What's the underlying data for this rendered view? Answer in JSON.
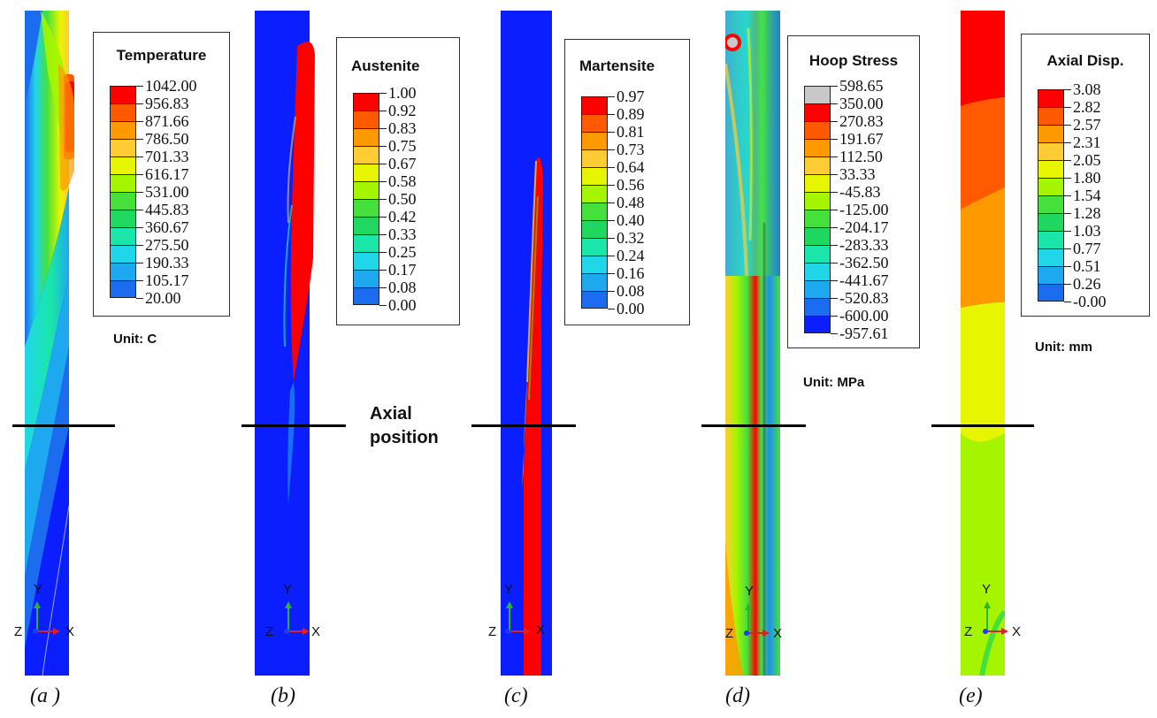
{
  "axial_position_label": [
    "Axial",
    "position"
  ],
  "colormaps": {
    "rainbow13": [
      "#ff0000",
      "#ff5a00",
      "#ff9900",
      "#ffcc33",
      "#e8f500",
      "#a6f500",
      "#45e03c",
      "#20d860",
      "#19e6a8",
      "#20d6e8",
      "#1ea8f0",
      "#1c6cf0",
      "#0a1eff"
    ],
    "rainbow15": [
      "#c8c8c8",
      "#ff0000",
      "#ff5a00",
      "#ff9900",
      "#ffcc33",
      "#e8f500",
      "#a6f500",
      "#45e03c",
      "#20d860",
      "#19e6a8",
      "#20d6e8",
      "#1ea8f0",
      "#1c6cf0",
      "#0a1eff",
      "#404040"
    ]
  },
  "panels": [
    {
      "id": "a",
      "caption": "(a )",
      "legend": {
        "title": "Temperature",
        "ticks": [
          "1042.00",
          "956.83",
          "871.66",
          "786.50",
          "701.33",
          "616.17",
          "531.00",
          "445.83",
          "360.67",
          "275.50",
          "190.33",
          "105.17",
          "20.00"
        ],
        "colors": "rainbow13"
      },
      "unit": "Unit: C",
      "triad": {
        "y": "Y",
        "z": "Z",
        "x": "X"
      }
    },
    {
      "id": "b",
      "caption": "(b)",
      "legend": {
        "title": "Austenite",
        "ticks": [
          "1.00",
          "0.92",
          "0.83",
          "0.75",
          "0.67",
          "0.58",
          "0.50",
          "0.42",
          "0.33",
          "0.25",
          "0.17",
          "0.08",
          "0.00"
        ],
        "colors": "rainbow13"
      },
      "unit": "",
      "triad": {
        "y": "Y",
        "z": "Z",
        "x": "X"
      }
    },
    {
      "id": "c",
      "caption": "(c)",
      "legend": {
        "title": "Martensite",
        "ticks": [
          "0.97",
          "0.89",
          "0.81",
          "0.73",
          "0.64",
          "0.56",
          "0.48",
          "0.40",
          "0.32",
          "0.24",
          "0.16",
          "0.08",
          "0.00"
        ],
        "colors": "rainbow13"
      },
      "unit": "",
      "triad": {
        "y": "Y",
        "z": "Z",
        "x": "X"
      }
    },
    {
      "id": "d",
      "caption": "(d)",
      "legend": {
        "title": "Hoop Stress",
        "ticks": [
          "598.65",
          "350.00",
          "270.83",
          "191.67",
          "112.50",
          "33.33",
          "-45.83",
          "-125.00",
          "-204.17",
          "-283.33",
          "-362.50",
          "-441.67",
          "-520.83",
          "-600.00",
          "-957.61"
        ],
        "colors": "rainbow15"
      },
      "unit": "Unit: MPa",
      "triad": {
        "y": "Y",
        "z": "Z",
        "x": "X"
      }
    },
    {
      "id": "e",
      "caption": "(e)",
      "legend": {
        "title": "Axial Disp.",
        "ticks": [
          "3.08",
          "2.82",
          "2.57",
          "2.31",
          "2.05",
          "1.80",
          "1.54",
          "1.28",
          "1.03",
          "0.77",
          "0.51",
          "0.26",
          "-0.00"
        ],
        "colors": "rainbow13"
      },
      "unit": "Unit: mm",
      "triad": {
        "y": "Y",
        "z": "Z",
        "x": "X"
      }
    }
  ]
}
